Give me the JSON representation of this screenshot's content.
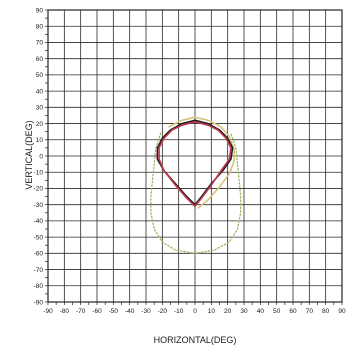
{
  "chart_data": {
    "type": "line",
    "xlabel": "HORIZONTAL(DEG)",
    "ylabel": "VERTICAL(DEG)",
    "xlim": [
      -90,
      90
    ],
    "ylim": [
      -90,
      90
    ],
    "x_ticks": [
      "-90",
      "-80",
      "-70",
      "-60",
      "-50",
      "-40",
      "-30",
      "-20",
      "-10",
      "0",
      "10",
      "20",
      "30",
      "40",
      "50",
      "60",
      "70",
      "80",
      "90"
    ],
    "y_ticks": [
      "90",
      "80",
      "70",
      "60",
      "50",
      "40",
      "30",
      "20",
      "10",
      "0",
      "-10",
      "-20",
      "-30",
      "-40",
      "-50",
      "-60",
      "-70",
      "-80",
      "-90"
    ],
    "grid": true,
    "legend": "none",
    "series": [
      {
        "color": "#1e1e1e",
        "style": "solid",
        "points": [
          [
            0,
            -30
          ],
          [
            -5,
            -25
          ],
          [
            -12,
            -17
          ],
          [
            -19,
            -9
          ],
          [
            -23,
            -2
          ],
          [
            -23,
            5
          ],
          [
            -20,
            11
          ],
          [
            -15,
            16
          ],
          [
            -8,
            20
          ],
          [
            0,
            22
          ],
          [
            8,
            20
          ],
          [
            15,
            16
          ],
          [
            20,
            11
          ],
          [
            23,
            5
          ],
          [
            22,
            -2
          ],
          [
            17,
            -9
          ],
          [
            10,
            -17
          ],
          [
            4,
            -25
          ],
          [
            0,
            -30
          ]
        ]
      },
      {
        "color": "#c0384e",
        "style": "solid",
        "points": [
          [
            0,
            -31
          ],
          [
            -5,
            -26
          ],
          [
            -12,
            -18
          ],
          [
            -19,
            -9
          ],
          [
            -22,
            -2
          ],
          [
            -22,
            5
          ],
          [
            -19,
            11
          ],
          [
            -14,
            16
          ],
          [
            -8,
            19
          ],
          [
            0,
            21
          ],
          [
            8,
            19
          ],
          [
            14,
            16
          ],
          [
            19,
            11
          ],
          [
            22,
            5
          ],
          [
            21,
            -2
          ],
          [
            16,
            -9
          ],
          [
            10,
            -18
          ],
          [
            4,
            -26
          ],
          [
            0,
            -31
          ]
        ]
      },
      {
        "color": "#d6c47a",
        "style": "solid",
        "points": [
          [
            -16,
            18
          ],
          [
            -8,
            22
          ],
          [
            0,
            24
          ],
          [
            8,
            22
          ],
          [
            16,
            18
          ],
          [
            21,
            12
          ],
          [
            24,
            4
          ],
          [
            24,
            -3
          ],
          [
            21,
            -11
          ],
          [
            15,
            -19
          ],
          [
            8,
            -27
          ],
          [
            2,
            -32
          ]
        ]
      },
      {
        "color": "#9bb05a",
        "style": "dotted",
        "points": [
          [
            -21,
            14
          ],
          [
            -24,
            5
          ],
          [
            -25,
            -5
          ],
          [
            -26,
            -15
          ],
          [
            -27,
            -25
          ],
          [
            -27,
            -35
          ],
          [
            -25,
            -45
          ],
          [
            -20,
            -53
          ],
          [
            -12,
            -58
          ],
          [
            0,
            -60
          ],
          [
            12,
            -58
          ],
          [
            21,
            -53
          ],
          [
            26,
            -45
          ],
          [
            28,
            -35
          ],
          [
            28,
            -25
          ],
          [
            27,
            -15
          ],
          [
            26,
            -5
          ],
          [
            25,
            5
          ],
          [
            22,
            14
          ]
        ]
      }
    ]
  }
}
